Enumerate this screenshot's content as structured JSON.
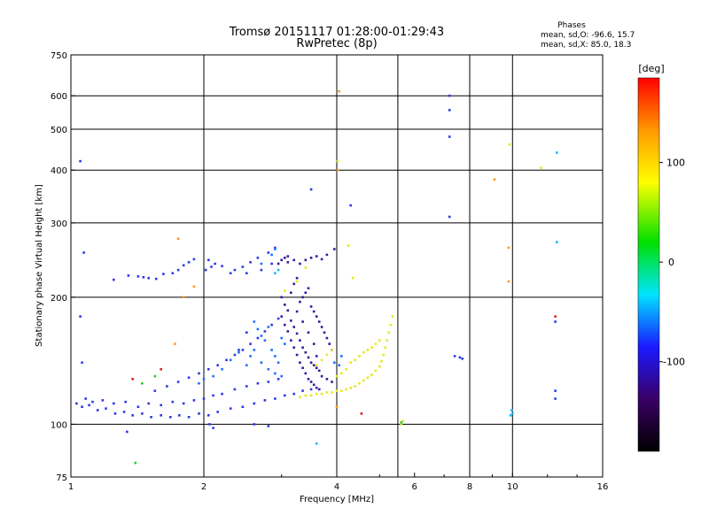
{
  "title_line1": "Tromsø 20151117 01:28:00-01:29:43",
  "title_line2": "RwPretec (8p)",
  "phases": {
    "title": "Phases",
    "line_o": "mean, sd,O: -96.6, 15.7",
    "line_x": "mean, sd,X:  85.0, 18.3"
  },
  "colorbar": {
    "unit_label": "[deg]",
    "ticks": [
      {
        "value": 100,
        "label": "100"
      },
      {
        "value": 0,
        "label": "0"
      },
      {
        "value": -100,
        "label": "-100"
      }
    ],
    "range": [
      -190,
      185
    ],
    "colors": [
      "#000000",
      "#3a0066",
      "#1a1aff",
      "#00e5ff",
      "#00e000",
      "#ffff00",
      "#ff9900",
      "#ff0000"
    ]
  },
  "chart_data": {
    "type": "scatter",
    "xlabel": "Frequency [MHz]",
    "ylabel": "Stationary phase Virtual Height [km]",
    "xscale": "log",
    "yscale": "log",
    "xlim": [
      1,
      16
    ],
    "ylim": [
      75,
      750
    ],
    "x_ticks": [
      {
        "value": 1,
        "label": "1"
      },
      {
        "value": 2,
        "label": "2"
      },
      {
        "value": 4,
        "label": "4"
      },
      {
        "value": 6,
        "label": "6"
      },
      {
        "value": 8,
        "label": "8"
      },
      {
        "value": 10,
        "label": "10"
      },
      {
        "value": 16,
        "label": "16"
      }
    ],
    "x_gridlines": [
      2,
      4,
      5.5,
      8,
      10
    ],
    "y_ticks": [
      {
        "value": 750,
        "label": "750"
      },
      {
        "value": 600,
        "label": "600"
      },
      {
        "value": 500,
        "label": "500"
      },
      {
        "value": 400,
        "label": "400"
      },
      {
        "value": 300,
        "label": "300"
      },
      {
        "value": 200,
        "label": "200"
      },
      {
        "value": 100,
        "label": "100"
      },
      {
        "value": 75,
        "label": "75"
      }
    ],
    "y_gridlines": [
      100,
      200,
      300,
      400,
      500,
      600
    ],
    "grid": true,
    "series": [
      {
        "color": "#2d3ae6",
        "points": [
          [
            1.03,
            112
          ],
          [
            1.06,
            110
          ],
          [
            1.1,
            111
          ],
          [
            1.15,
            108
          ],
          [
            1.2,
            109
          ],
          [
            1.26,
            106
          ],
          [
            1.32,
            107
          ],
          [
            1.38,
            105
          ],
          [
            1.45,
            106
          ],
          [
            1.52,
            104
          ],
          [
            1.6,
            105
          ],
          [
            1.68,
            104
          ],
          [
            1.76,
            105
          ],
          [
            1.85,
            104
          ],
          [
            1.95,
            106
          ],
          [
            2.05,
            105
          ],
          [
            2.15,
            107
          ],
          [
            2.3,
            109
          ],
          [
            2.45,
            110
          ],
          [
            2.6,
            112
          ],
          [
            2.75,
            114
          ],
          [
            2.9,
            115
          ],
          [
            3.05,
            117
          ],
          [
            3.2,
            118
          ],
          [
            3.35,
            120
          ],
          [
            3.5,
            121
          ],
          [
            1.08,
            115
          ],
          [
            1.12,
            113
          ],
          [
            1.18,
            114
          ],
          [
            1.25,
            112
          ],
          [
            1.33,
            113
          ],
          [
            1.42,
            110
          ],
          [
            1.5,
            112
          ],
          [
            1.6,
            111
          ],
          [
            1.7,
            113
          ],
          [
            1.8,
            112
          ],
          [
            1.9,
            114
          ],
          [
            2.0,
            115
          ],
          [
            2.1,
            117
          ],
          [
            2.2,
            118
          ],
          [
            2.35,
            121
          ],
          [
            2.5,
            123
          ],
          [
            2.65,
            125
          ],
          [
            2.8,
            126
          ],
          [
            2.95,
            128
          ],
          [
            1.55,
            120
          ],
          [
            1.65,
            123
          ],
          [
            1.75,
            126
          ],
          [
            1.85,
            129
          ],
          [
            1.95,
            132
          ],
          [
            2.05,
            135
          ],
          [
            2.15,
            138
          ],
          [
            2.25,
            142
          ],
          [
            2.35,
            146
          ],
          [
            2.45,
            150
          ],
          [
            2.55,
            155
          ],
          [
            2.65,
            160
          ],
          [
            2.75,
            166
          ],
          [
            2.85,
            172
          ],
          [
            2.95,
            178
          ],
          [
            1.35,
            225
          ],
          [
            1.42,
            224
          ],
          [
            1.46,
            223
          ],
          [
            1.5,
            222
          ],
          [
            1.56,
            221
          ],
          [
            1.7,
            228
          ],
          [
            1.75,
            232
          ],
          [
            1.8,
            238
          ],
          [
            1.85,
            242
          ],
          [
            1.9,
            246
          ],
          [
            2.02,
            232
          ],
          [
            2.08,
            236
          ],
          [
            2.12,
            240
          ],
          [
            2.2,
            237
          ],
          [
            2.35,
            232
          ],
          [
            2.45,
            236
          ],
          [
            2.55,
            242
          ],
          [
            2.65,
            248
          ],
          [
            2.8,
            255
          ],
          [
            2.9,
            262
          ],
          [
            1.25,
            220
          ],
          [
            1.62,
            227
          ],
          [
            2.05,
            245
          ],
          [
            2.3,
            228
          ],
          [
            2.5,
            228
          ],
          [
            2.7,
            232
          ],
          [
            2.85,
            240
          ],
          [
            1.05,
            420
          ],
          [
            1.07,
            255
          ],
          [
            1.05,
            180
          ],
          [
            1.06,
            140
          ],
          [
            1.34,
            96
          ],
          [
            2.06,
            100
          ],
          [
            2.1,
            98
          ],
          [
            2.6,
            100
          ],
          [
            2.8,
            99
          ],
          [
            4.3,
            330
          ],
          [
            7.2,
            600
          ],
          [
            7.2,
            555
          ],
          [
            7.2,
            480
          ],
          [
            7.2,
            310
          ],
          [
            7.4,
            145
          ],
          [
            7.6,
            144
          ],
          [
            7.7,
            143
          ],
          [
            12.5,
            120
          ],
          [
            12.5,
            115
          ],
          [
            12.5,
            175
          ],
          [
            3.5,
            360
          ],
          [
            2.4,
            150
          ],
          [
            2.5,
            165
          ]
        ]
      },
      {
        "color": "#3a1a9e",
        "points": [
          [
            3.0,
            180
          ],
          [
            3.05,
            172
          ],
          [
            3.1,
            166
          ],
          [
            3.15,
            158
          ],
          [
            3.2,
            152
          ],
          [
            3.25,
            146
          ],
          [
            3.3,
            140
          ],
          [
            3.35,
            136
          ],
          [
            3.4,
            132
          ],
          [
            3.45,
            128
          ],
          [
            3.5,
            126
          ],
          [
            3.55,
            124
          ],
          [
            3.6,
            122
          ],
          [
            3.65,
            121
          ],
          [
            3.0,
            200
          ],
          [
            3.05,
            192
          ],
          [
            3.1,
            186
          ],
          [
            3.15,
            176
          ],
          [
            3.2,
            170
          ],
          [
            3.25,
            164
          ],
          [
            3.3,
            158
          ],
          [
            3.35,
            152
          ],
          [
            3.4,
            148
          ],
          [
            3.45,
            144
          ],
          [
            3.5,
            140
          ],
          [
            3.55,
            138
          ],
          [
            3.6,
            136
          ],
          [
            3.65,
            134
          ],
          [
            3.3,
            195
          ],
          [
            3.35,
            200
          ],
          [
            3.4,
            205
          ],
          [
            3.45,
            210
          ],
          [
            3.5,
            190
          ],
          [
            3.55,
            185
          ],
          [
            3.6,
            180
          ],
          [
            3.65,
            175
          ],
          [
            3.7,
            170
          ],
          [
            3.75,
            165
          ],
          [
            3.8,
            160
          ],
          [
            3.85,
            155
          ],
          [
            3.9,
            150
          ],
          [
            3.1,
            250
          ],
          [
            3.2,
            245
          ],
          [
            3.3,
            240
          ],
          [
            3.4,
            245
          ],
          [
            3.5,
            248
          ],
          [
            3.6,
            250
          ],
          [
            3.7,
            246
          ],
          [
            3.8,
            252
          ],
          [
            3.95,
            260
          ],
          [
            3.2,
            215
          ],
          [
            3.25,
            222
          ],
          [
            3.15,
            205
          ],
          [
            3.55,
            155
          ],
          [
            3.45,
            165
          ],
          [
            3.35,
            175
          ],
          [
            3.25,
            185
          ],
          [
            3.6,
            145
          ],
          [
            3.7,
            130
          ],
          [
            3.8,
            128
          ],
          [
            3.9,
            126
          ],
          [
            2.95,
            240
          ],
          [
            3.0,
            245
          ],
          [
            3.05,
            248
          ],
          [
            3.1,
            242
          ]
        ]
      },
      {
        "color": "#1f70ff",
        "points": [
          [
            2.6,
            175
          ],
          [
            2.65,
            168
          ],
          [
            2.7,
            162
          ],
          [
            2.75,
            158
          ],
          [
            2.8,
            170
          ],
          [
            2.85,
            150
          ],
          [
            2.9,
            145
          ],
          [
            2.95,
            140
          ],
          [
            3.0,
            160
          ],
          [
            3.05,
            155
          ],
          [
            2.55,
            145
          ],
          [
            2.6,
            150
          ],
          [
            2.7,
            140
          ],
          [
            2.8,
            135
          ],
          [
            2.9,
            132
          ],
          [
            3.0,
            130
          ],
          [
            2.3,
            142
          ],
          [
            2.4,
            148
          ],
          [
            2.5,
            138
          ],
          [
            2.2,
            135
          ],
          [
            2.1,
            130
          ],
          [
            2.0,
            128
          ],
          [
            1.95,
            125
          ],
          [
            2.9,
            260
          ],
          [
            2.85,
            252
          ],
          [
            2.7,
            240
          ],
          [
            3.95,
            140
          ],
          [
            4.05,
            138
          ],
          [
            4.1,
            145
          ]
        ]
      },
      {
        "color": "#e8e820",
        "points": [
          [
            3.3,
            116
          ],
          [
            3.4,
            117
          ],
          [
            3.5,
            117
          ],
          [
            3.6,
            118
          ],
          [
            3.7,
            118
          ],
          [
            3.8,
            119
          ],
          [
            3.9,
            119
          ],
          [
            4.0,
            120
          ],
          [
            4.1,
            120
          ],
          [
            4.2,
            121
          ],
          [
            4.3,
            122
          ],
          [
            4.4,
            123
          ],
          [
            4.5,
            125
          ],
          [
            4.6,
            127
          ],
          [
            4.7,
            129
          ],
          [
            4.8,
            131
          ],
          [
            4.9,
            134
          ],
          [
            5.0,
            137
          ],
          [
            5.05,
            141
          ],
          [
            5.1,
            146
          ],
          [
            5.15,
            152
          ],
          [
            5.2,
            158
          ],
          [
            5.25,
            165
          ],
          [
            5.3,
            172
          ],
          [
            5.35,
            180
          ],
          [
            4.2,
            135
          ],
          [
            4.3,
            140
          ],
          [
            4.4,
            142
          ],
          [
            4.5,
            145
          ],
          [
            4.6,
            148
          ],
          [
            4.7,
            150
          ],
          [
            4.8,
            152
          ],
          [
            4.9,
            155
          ],
          [
            5.0,
            158
          ],
          [
            4.0,
            130
          ],
          [
            4.1,
            132
          ],
          [
            3.6,
            138
          ],
          [
            3.7,
            142
          ],
          [
            3.8,
            146
          ],
          [
            3.9,
            150
          ],
          [
            3.05,
            207
          ],
          [
            3.25,
            218
          ],
          [
            3.4,
            235
          ],
          [
            4.25,
            265
          ],
          [
            4.35,
            222
          ],
          [
            5.65,
            102
          ],
          [
            5.6,
            100
          ],
          [
            9.85,
            460
          ],
          [
            11.6,
            405
          ],
          [
            4.02,
            420
          ]
        ]
      },
      {
        "color": "#ff9a1a",
        "points": [
          [
            4.05,
            615
          ],
          [
            4.02,
            400
          ],
          [
            9.1,
            380
          ],
          [
            9.8,
            262
          ],
          [
            9.8,
            218
          ],
          [
            1.75,
            275
          ],
          [
            1.9,
            212
          ],
          [
            1.8,
            200
          ],
          [
            1.72,
            155
          ],
          [
            4.0,
            110
          ]
        ]
      },
      {
        "color": "#18b8ff",
        "points": [
          [
            9.95,
            108
          ],
          [
            10.0,
            106
          ],
          [
            9.9,
            105
          ],
          [
            12.6,
            440
          ],
          [
            12.6,
            270
          ],
          [
            2.9,
            228
          ],
          [
            2.95,
            232
          ],
          [
            3.6,
            90
          ]
        ]
      },
      {
        "color": "#20d020",
        "points": [
          [
            1.55,
            130
          ],
          [
            1.45,
            125
          ],
          [
            1.4,
            81
          ],
          [
            5.6,
            101
          ]
        ]
      },
      {
        "color": "#e02020",
        "points": [
          [
            1.6,
            135
          ],
          [
            4.55,
            106
          ],
          [
            12.5,
            180
          ],
          [
            1.38,
            128
          ]
        ]
      }
    ]
  }
}
